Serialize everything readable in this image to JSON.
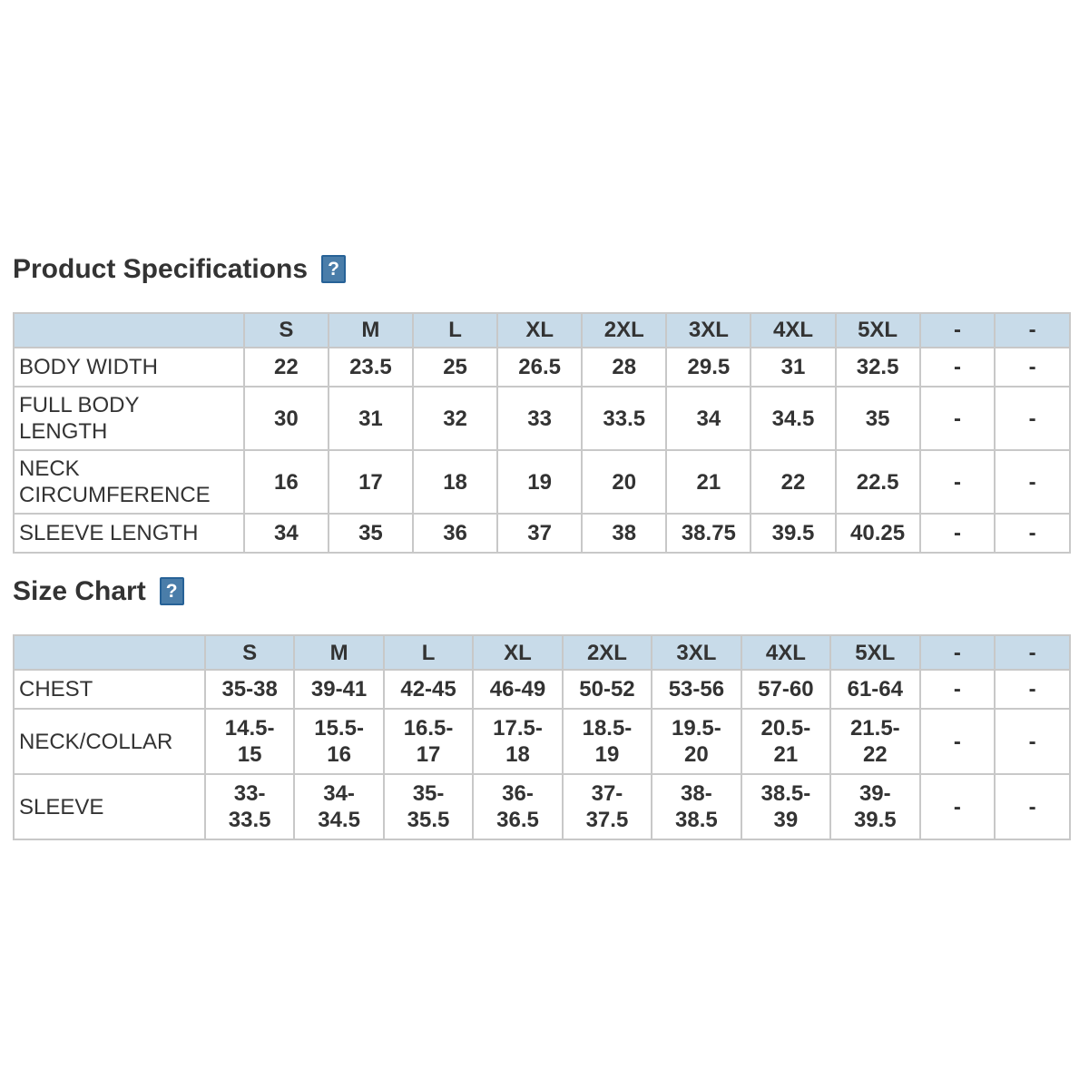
{
  "colors": {
    "page-bg": "#ffffff",
    "text": "#333333",
    "header-bg": "#c8dbe9",
    "grid-border": "#c8c8c8",
    "table-outline": "#b9b9b9",
    "help-bg": "#4a7da9",
    "help-border": "#276297",
    "help-fg": "#ffffff"
  },
  "product_specifications": {
    "title": "Product Specifications",
    "help_icon": "?",
    "columns": [
      "",
      "S",
      "M",
      "L",
      "XL",
      "2XL",
      "3XL",
      "4XL",
      "5XL",
      "-",
      "-"
    ],
    "rows": [
      {
        "label": "BODY WIDTH",
        "values": [
          "22",
          "23.5",
          "25",
          "26.5",
          "28",
          "29.5",
          "31",
          "32.5",
          "-",
          "-"
        ]
      },
      {
        "label": "FULL BODY LENGTH",
        "values": [
          "30",
          "31",
          "32",
          "33",
          "33.5",
          "34",
          "34.5",
          "35",
          "-",
          "-"
        ]
      },
      {
        "label": "NECK CIRCUMFERENCE",
        "values": [
          "16",
          "17",
          "18",
          "19",
          "20",
          "21",
          "22",
          "22.5",
          "-",
          "-"
        ]
      },
      {
        "label": "SLEEVE LENGTH",
        "values": [
          "34",
          "35",
          "36",
          "37",
          "38",
          "38.75",
          "39.5",
          "40.25",
          "-",
          "-"
        ]
      }
    ]
  },
  "size_chart": {
    "title": "Size Chart",
    "help_icon": "?",
    "columns": [
      "",
      "S",
      "M",
      "L",
      "XL",
      "2XL",
      "3XL",
      "4XL",
      "5XL",
      "-",
      "-"
    ],
    "rows": [
      {
        "label": "CHEST",
        "values": [
          "35-38",
          "39-41",
          "42-45",
          "46-49",
          "50-52",
          "53-56",
          "57-60",
          "61-64",
          "-",
          "-"
        ]
      },
      {
        "label": "NECK/COLLAR",
        "values": [
          "14.5-15",
          "15.5-16",
          "16.5-17",
          "17.5-18",
          "18.5-19",
          "19.5-20",
          "20.5-21",
          "21.5-22",
          "-",
          "-"
        ]
      },
      {
        "label": "SLEEVE",
        "values": [
          "33-33.5",
          "34-34.5",
          "35-35.5",
          "36-36.5",
          "37-37.5",
          "38-38.5",
          "38.5-39",
          "39-39.5",
          "-",
          "-"
        ]
      }
    ]
  }
}
